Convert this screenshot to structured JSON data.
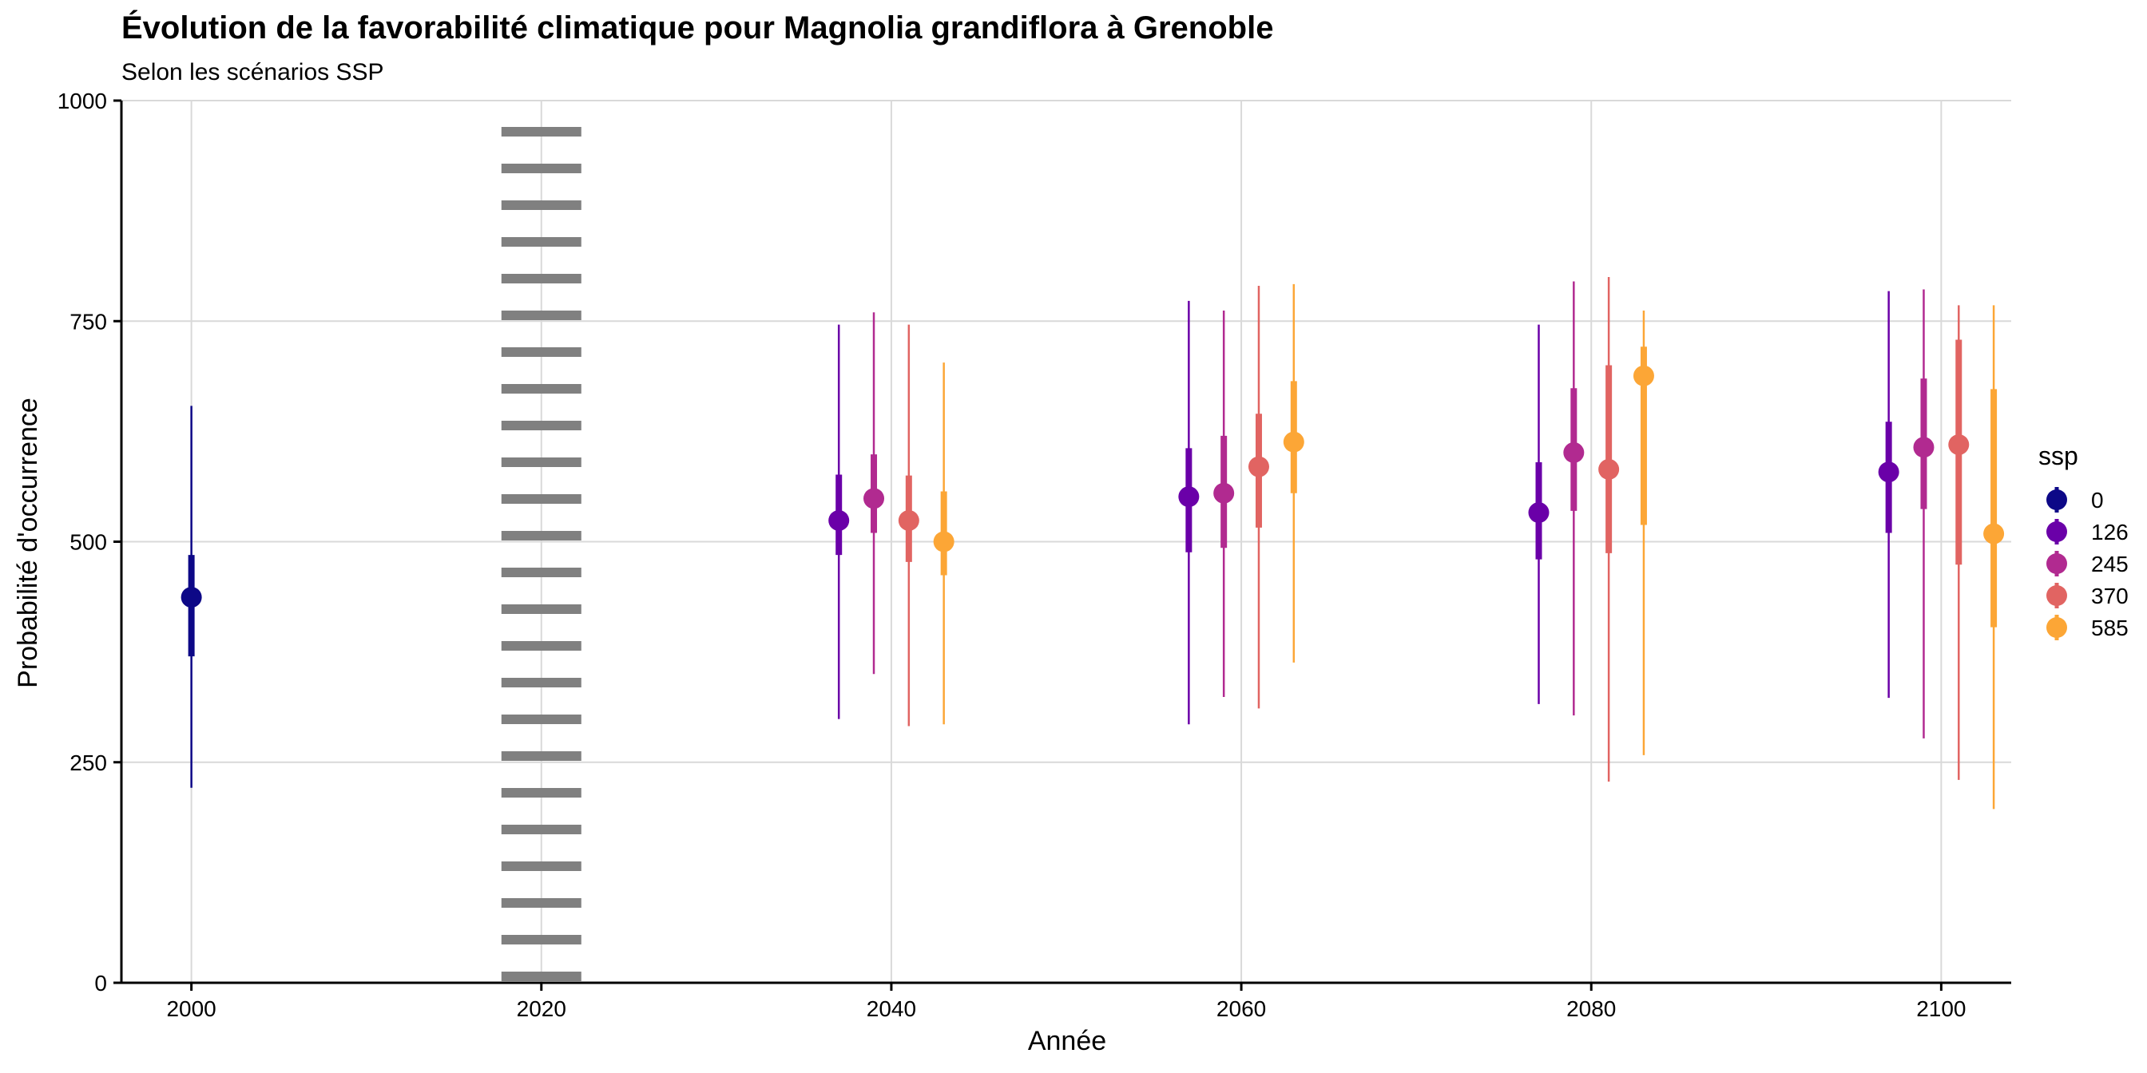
{
  "chart_data": {
    "type": "scatter",
    "subtype": "pointrange-interval",
    "title": "Évolution de la favorabilité climatique pour Magnolia grandiflora à Grenoble",
    "subtitle": "Selon les scénarios SSP",
    "xlabel": "Année",
    "ylabel": "Probabilité d'occurrence",
    "xlim": [
      1996,
      2104
    ],
    "ylim": [
      0,
      1000
    ],
    "x_ticks": [
      2000,
      2020,
      2040,
      2060,
      2080,
      2100
    ],
    "y_ticks": [
      0,
      250,
      500,
      750,
      1000
    ],
    "x_tick_labels": [
      "2000",
      "2020",
      "2040",
      "2060",
      "2080",
      "2100"
    ],
    "y_tick_labels": [
      "0",
      "250",
      "500",
      "750",
      "1000"
    ],
    "grid": true,
    "reference_line": {
      "x": 2020,
      "style": "dotted",
      "color": "#808080"
    },
    "legend": {
      "title": "ssp",
      "position": "right",
      "items": [
        {
          "label": "0",
          "color": "#0D0887"
        },
        {
          "label": "126",
          "color": "#6A00A8"
        },
        {
          "label": "245",
          "color": "#B12A90"
        },
        {
          "label": "370",
          "color": "#E16462"
        },
        {
          "label": "585",
          "color": "#FCA636"
        }
      ]
    },
    "series": [
      {
        "name": "0",
        "color": "#0D0887",
        "points": [
          {
            "x": 2000,
            "y": 437,
            "inner": [
              370,
              485
            ],
            "outer": [
              221,
              654
            ]
          }
        ]
      },
      {
        "name": "126",
        "color": "#6A00A8",
        "points": [
          {
            "x": 2037,
            "y": 524,
            "inner": [
              485,
              576
            ],
            "outer": [
              299,
              746
            ]
          },
          {
            "x": 2057,
            "y": 551,
            "inner": [
              488,
              606
            ],
            "outer": [
              293,
              773
            ]
          },
          {
            "x": 2077,
            "y": 533,
            "inner": [
              480,
              590
            ],
            "outer": [
              316,
              746
            ]
          },
          {
            "x": 2097,
            "y": 579,
            "inner": [
              510,
              636
            ],
            "outer": [
              323,
              784
            ]
          }
        ]
      },
      {
        "name": "245",
        "color": "#B12A90",
        "points": [
          {
            "x": 2039,
            "y": 549,
            "inner": [
              510,
              599
            ],
            "outer": [
              350,
              760
            ]
          },
          {
            "x": 2059,
            "y": 555,
            "inner": [
              493,
              620
            ],
            "outer": [
              324,
              762
            ]
          },
          {
            "x": 2079,
            "y": 601,
            "inner": [
              535,
              674
            ],
            "outer": [
              303,
              795
            ]
          },
          {
            "x": 2099,
            "y": 607,
            "inner": [
              537,
              685
            ],
            "outer": [
              277,
              786
            ]
          }
        ]
      },
      {
        "name": "370",
        "color": "#E16462",
        "points": [
          {
            "x": 2041,
            "y": 524,
            "inner": [
              477,
              575
            ],
            "outer": [
              291,
              746
            ]
          },
          {
            "x": 2061,
            "y": 585,
            "inner": [
              516,
              645
            ],
            "outer": [
              311,
              790
            ]
          },
          {
            "x": 2081,
            "y": 582,
            "inner": [
              487,
              700
            ],
            "outer": [
              228,
              800
            ]
          },
          {
            "x": 2101,
            "y": 610,
            "inner": [
              474,
              729
            ],
            "outer": [
              230,
              768
            ]
          }
        ]
      },
      {
        "name": "585",
        "color": "#FCA636",
        "points": [
          {
            "x": 2043,
            "y": 500,
            "inner": [
              462,
              557
            ],
            "outer": [
              293,
              703
            ]
          },
          {
            "x": 2063,
            "y": 613,
            "inner": [
              555,
              682
            ],
            "outer": [
              363,
              792
            ]
          },
          {
            "x": 2083,
            "y": 688,
            "inner": [
              519,
              721
            ],
            "outer": [
              258,
              762
            ]
          },
          {
            "x": 2103,
            "y": 509,
            "inner": [
              403,
              673
            ],
            "outer": [
              197,
              768
            ]
          }
        ]
      }
    ]
  }
}
